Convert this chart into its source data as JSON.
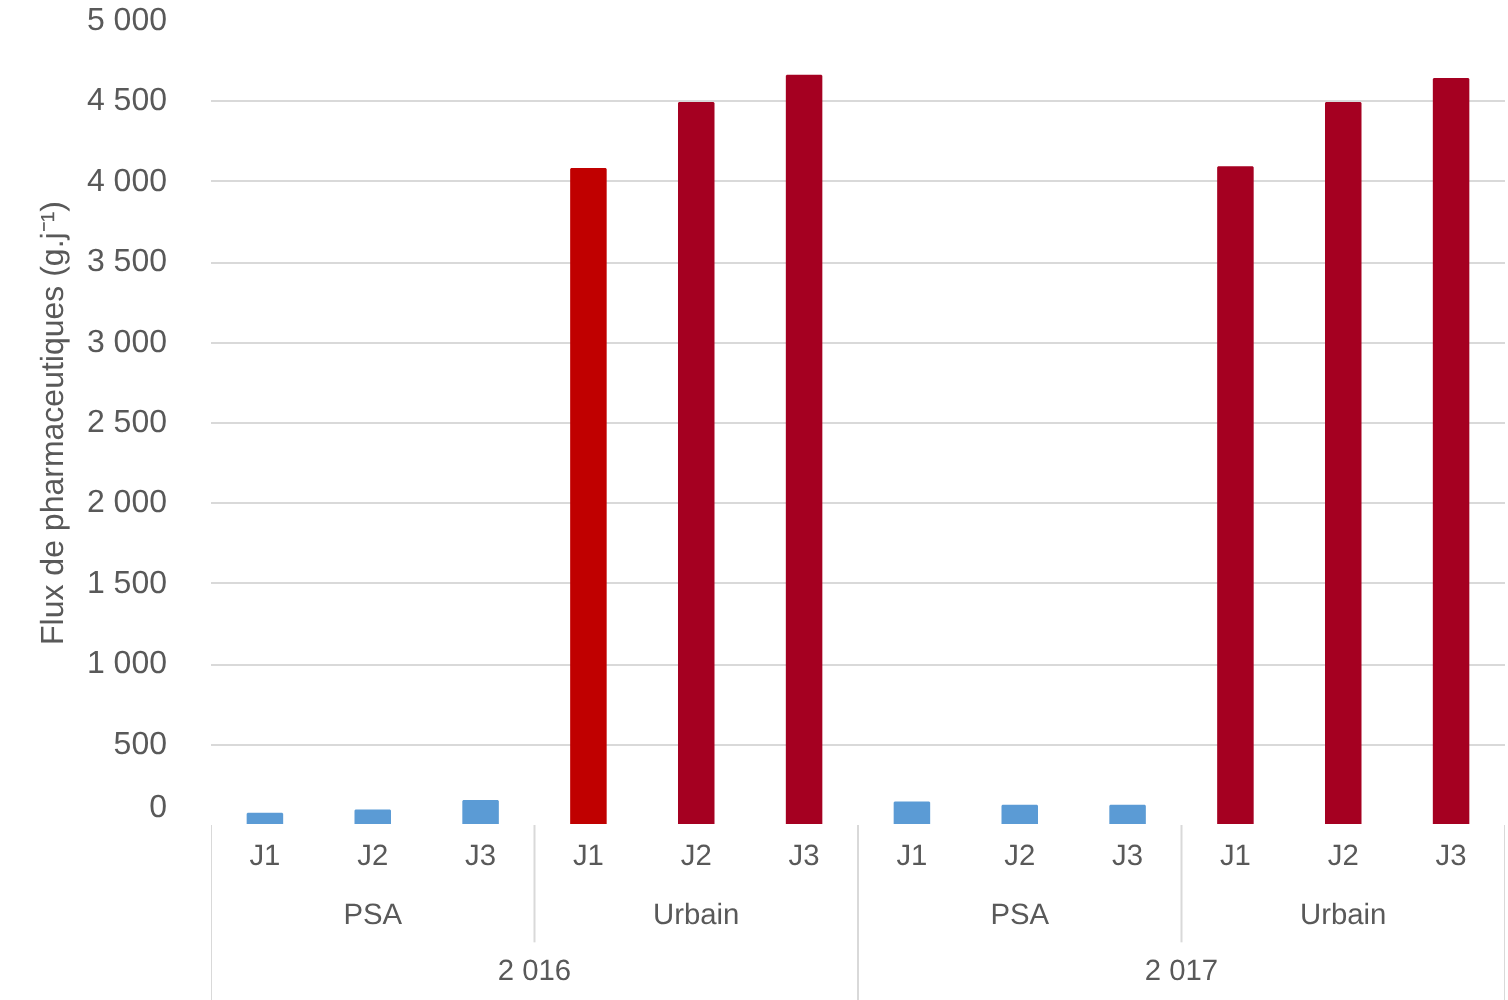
{
  "chart_data": {
    "type": "bar",
    "ylabel": "Flux de pharmaceutiques (g.j⁻¹)",
    "categories": [
      "J1",
      "J2",
      "J3",
      "J1",
      "J2",
      "J3",
      "J1",
      "J2",
      "J3",
      "J1",
      "J2",
      "J3"
    ],
    "values": [
      70,
      90,
      150,
      4080,
      4490,
      4660,
      140,
      120,
      120,
      4090,
      4490,
      4640
    ],
    "colors": [
      "#5b9bd5",
      "#5b9bd5",
      "#5b9bd5",
      "#c00000",
      "#a50021",
      "#a50021",
      "#5b9bd5",
      "#5b9bd5",
      "#5b9bd5",
      "#a50021",
      "#a50021",
      "#a50021"
    ],
    "annotations": [
      "PSA",
      "Urbain",
      "PSA",
      "Urbain",
      "2 016",
      "2 017"
    ],
    "ylim": [
      0,
      5000
    ],
    "yticks": [
      {
        "value": 0,
        "label": "0"
      },
      {
        "value": 500,
        "label": "500"
      },
      {
        "value": 1000,
        "label": "1 000"
      },
      {
        "value": 1500,
        "label": "1 500"
      },
      {
        "value": 2000,
        "label": "2 000"
      },
      {
        "value": 2500,
        "label": "2 500"
      },
      {
        "value": 3000,
        "label": "3 000"
      },
      {
        "value": 3500,
        "label": "3 500"
      },
      {
        "value": 4000,
        "label": "4 000"
      },
      {
        "value": 4500,
        "label": "4 500"
      },
      {
        "value": 5000,
        "label": "5 000"
      }
    ],
    "grid": "y"
  }
}
